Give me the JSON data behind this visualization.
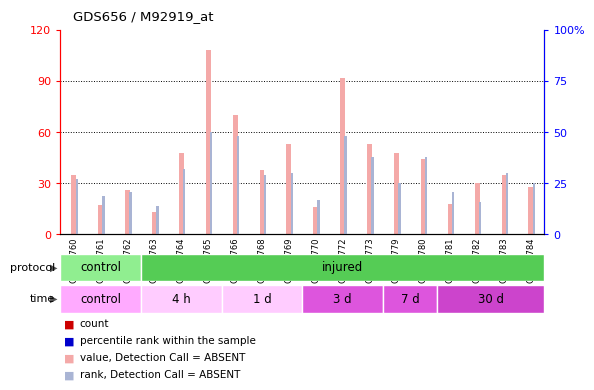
{
  "title": "GDS656 / M92919_at",
  "samples": [
    "GSM15760",
    "GSM15761",
    "GSM15762",
    "GSM15763",
    "GSM15764",
    "GSM15765",
    "GSM15766",
    "GSM15768",
    "GSM15769",
    "GSM15770",
    "GSM15772",
    "GSM15773",
    "GSM15779",
    "GSM15780",
    "GSM15781",
    "GSM15782",
    "GSM15783",
    "GSM15784"
  ],
  "bar_values": [
    35,
    17,
    26,
    13,
    48,
    108,
    70,
    38,
    53,
    16,
    92,
    53,
    48,
    44,
    18,
    30,
    35,
    28
  ],
  "rank_values": [
    27,
    19,
    21,
    14,
    32,
    50,
    48,
    29,
    30,
    17,
    48,
    38,
    25,
    38,
    21,
    16,
    30,
    25
  ],
  "bar_color": "#f4a9a8",
  "rank_color": "#a9b4d4",
  "left_ylim": [
    0,
    120
  ],
  "right_ylim": [
    0,
    100
  ],
  "left_yticks": [
    0,
    30,
    60,
    90,
    120
  ],
  "right_yticks": [
    0,
    25,
    50,
    75,
    100
  ],
  "right_yticklabels": [
    "0",
    "25",
    "50",
    "75",
    "100%"
  ],
  "proto_segments": [
    {
      "text": "control",
      "start": 0,
      "end": 3,
      "color": "#90ee90"
    },
    {
      "text": "injured",
      "start": 3,
      "end": 18,
      "color": "#55cc55"
    }
  ],
  "time_segments": [
    {
      "text": "control",
      "start": 0,
      "end": 3,
      "color": "#ffaaff"
    },
    {
      "text": "4 h",
      "start": 3,
      "end": 6,
      "color": "#ffccff"
    },
    {
      "text": "1 d",
      "start": 6,
      "end": 9,
      "color": "#ffccff"
    },
    {
      "text": "3 d",
      "start": 9,
      "end": 12,
      "color": "#dd55dd"
    },
    {
      "text": "7 d",
      "start": 12,
      "end": 14,
      "color": "#dd55dd"
    },
    {
      "text": "30 d",
      "start": 14,
      "end": 18,
      "color": "#cc44cc"
    }
  ],
  "legend_items": [
    {
      "label": "count",
      "color": "#cc0000"
    },
    {
      "label": "percentile rank within the sample",
      "color": "#0000cc"
    },
    {
      "label": "value, Detection Call = ABSENT",
      "color": "#f4a9a8"
    },
    {
      "label": "rank, Detection Call = ABSENT",
      "color": "#a9b4d4"
    }
  ]
}
